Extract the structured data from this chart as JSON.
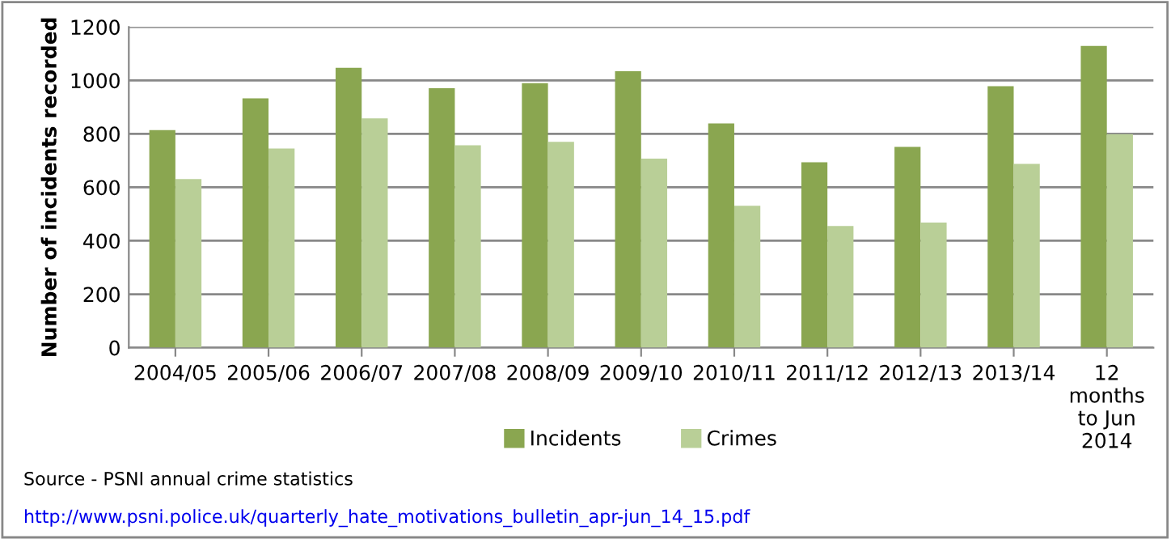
{
  "chart_data": {
    "type": "bar",
    "ylabel": "Number of incidents recorded",
    "categories": [
      "2004/05",
      "2005/06",
      "2006/07",
      "2007/08",
      "2008/09",
      "2009/10",
      "2010/11",
      "2011/12",
      "2012/13",
      "2013/14",
      "12\nmonths\nto Jun\n2014"
    ],
    "series": [
      {
        "name": "Incidents",
        "color": "#8aa650",
        "values": [
          814,
          933,
          1047,
          971,
          990,
          1034,
          839,
          694,
          751,
          978,
          1129
        ]
      },
      {
        "name": "Crimes",
        "color": "#b9cf97",
        "values": [
          631,
          745,
          858,
          757,
          770,
          707,
          531,
          455,
          468,
          688,
          799
        ]
      }
    ],
    "ylim": [
      0,
      1200
    ],
    "yticks": [
      0,
      200,
      400,
      600,
      800,
      1000,
      1200
    ],
    "grid": "y",
    "legend": "bottom",
    "annotations": [
      "Source - PSNI annual crime statistics",
      "http://www.psni.police.uk/quarterly_hate_motivations_bulletin_apr-jun_14_15.pdf"
    ]
  }
}
